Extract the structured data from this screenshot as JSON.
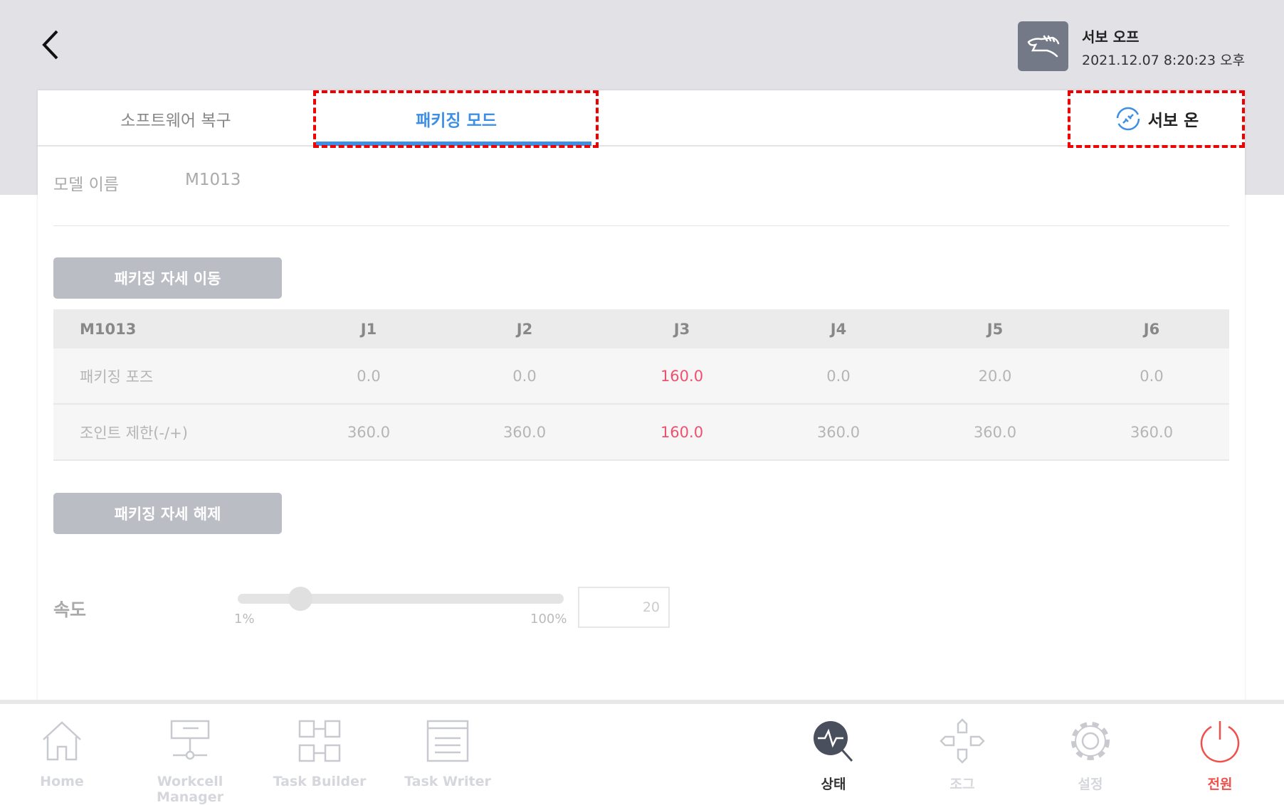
{
  "header": {
    "servo_status": "서보 오프",
    "datetime": "2021.12.07 8:20:23 오후"
  },
  "tabs": [
    {
      "label": "소프트웨어 복구"
    },
    {
      "label": "패키징 모드",
      "active": true
    },
    {
      "label": "서보 온"
    }
  ],
  "model": {
    "label": "모델 이름",
    "value": "M1013"
  },
  "buttons": {
    "move": "패키징 자세 이동",
    "release": "패키징 자세 해제"
  },
  "table": {
    "headers": [
      "M1013",
      "J1",
      "J2",
      "J3",
      "J4",
      "J5",
      "J6"
    ],
    "rows": [
      {
        "label": "패키징 포즈",
        "values": [
          "0.0",
          "0.0",
          "160.0",
          "0.0",
          "20.0",
          "0.0"
        ]
      },
      {
        "label": "조인트 제한(-/+)",
        "values": [
          "360.0",
          "360.0",
          "160.0",
          "360.0",
          "360.0",
          "360.0"
        ]
      }
    ],
    "highlight_color": "#f0506e"
  },
  "speed": {
    "label": "속도",
    "min_label": "1%",
    "max_label": "100%",
    "value": "20",
    "percent": 20
  },
  "nav": [
    {
      "label": "Home"
    },
    {
      "label": "Workcell Manager"
    },
    {
      "label": "Task Builder"
    },
    {
      "label": "Task Writer"
    },
    {
      "label": "상태",
      "active": true
    },
    {
      "label": "조그"
    },
    {
      "label": "설정"
    },
    {
      "label": "전원",
      "color": "#f0504a"
    }
  ],
  "colors": {
    "accent": "#3d8fe6",
    "highlight_box": "#ee0000"
  }
}
